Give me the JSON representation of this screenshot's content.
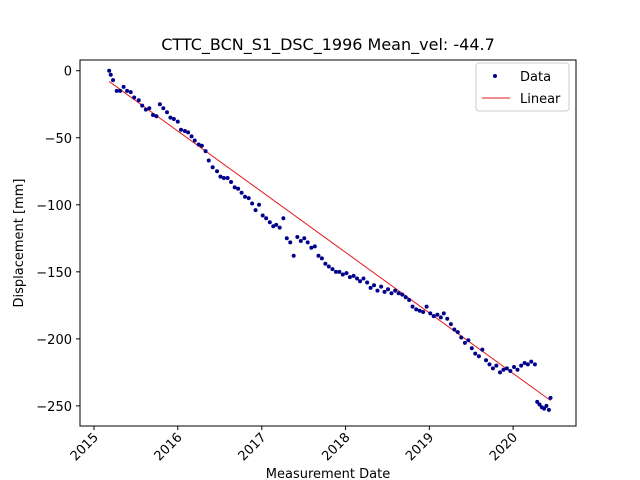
{
  "chart_data": {
    "type": "scatter",
    "title": "CTTC_BCN_S1_DSC_1996     Mean_vel: -44.7",
    "xlabel": "Measurement Date",
    "ylabel": "Displacement [mm]",
    "x_type": "date",
    "xlim": [
      "2014-11-01",
      "2020-10-01"
    ],
    "ylim": [
      -265,
      8
    ],
    "x_ticks": [
      "2015-01-01",
      "2016-01-01",
      "2017-01-01",
      "2018-01-01",
      "2019-01-01",
      "2020-01-01"
    ],
    "x_tick_labels": [
      "2015",
      "2016",
      "2017",
      "2018",
      "2019",
      "2020"
    ],
    "y_ticks": [
      0,
      -50,
      -100,
      -150,
      -200,
      -250
    ],
    "y_tick_labels": [
      "0",
      "−50",
      "−100",
      "−150",
      "−200",
      "−250"
    ],
    "grid": false,
    "legend_position": "top-right",
    "series": [
      {
        "name": "Data",
        "style": "markers",
        "color": "#00008b",
        "x": [
          "2015-03-08",
          "2015-03-15",
          "2015-03-25",
          "2015-04-10",
          "2015-04-25",
          "2015-05-10",
          "2015-05-25",
          "2015-06-10",
          "2015-06-25",
          "2015-07-15",
          "2015-07-30",
          "2015-08-15",
          "2015-08-30",
          "2015-09-15",
          "2015-09-30",
          "2015-10-15",
          "2015-10-30",
          "2015-11-15",
          "2015-11-30",
          "2015-12-15",
          "2016-01-01",
          "2016-01-15",
          "2016-02-01",
          "2016-02-15",
          "2016-03-01",
          "2016-03-15",
          "2016-04-01",
          "2016-04-15",
          "2016-05-01",
          "2016-05-15",
          "2016-06-01",
          "2016-06-20",
          "2016-07-05",
          "2016-07-20",
          "2016-08-05",
          "2016-08-20",
          "2016-09-05",
          "2016-09-20",
          "2016-10-05",
          "2016-10-20",
          "2016-11-05",
          "2016-11-20",
          "2016-12-05",
          "2016-12-20",
          "2017-01-05",
          "2017-01-20",
          "2017-02-05",
          "2017-02-20",
          "2017-03-05",
          "2017-03-20",
          "2017-04-05",
          "2017-04-20",
          "2017-05-05",
          "2017-05-20",
          "2017-06-05",
          "2017-06-20",
          "2017-07-05",
          "2017-07-20",
          "2017-08-05",
          "2017-08-20",
          "2017-09-05",
          "2017-09-20",
          "2017-10-05",
          "2017-10-20",
          "2017-11-05",
          "2017-11-20",
          "2017-12-05",
          "2017-12-20",
          "2018-01-05",
          "2018-01-20",
          "2018-02-05",
          "2018-02-20",
          "2018-03-05",
          "2018-03-20",
          "2018-04-05",
          "2018-04-20",
          "2018-05-05",
          "2018-05-20",
          "2018-06-05",
          "2018-06-20",
          "2018-07-05",
          "2018-07-20",
          "2018-08-05",
          "2018-08-20",
          "2018-09-05",
          "2018-09-20",
          "2018-10-05",
          "2018-10-20",
          "2018-11-05",
          "2018-11-20",
          "2018-12-05",
          "2018-12-20",
          "2019-01-05",
          "2019-01-20",
          "2019-02-05",
          "2019-02-20",
          "2019-03-05",
          "2019-03-20",
          "2019-04-05",
          "2019-04-20",
          "2019-05-05",
          "2019-05-20",
          "2019-06-05",
          "2019-06-20",
          "2019-07-05",
          "2019-07-20",
          "2019-08-05",
          "2019-08-20",
          "2019-09-05",
          "2019-09-20",
          "2019-10-05",
          "2019-10-20",
          "2019-11-05",
          "2019-11-20",
          "2019-12-05",
          "2019-12-20",
          "2020-01-05",
          "2020-01-20",
          "2020-02-05",
          "2020-02-20",
          "2020-03-05",
          "2020-03-20",
          "2020-04-05",
          "2020-04-15",
          "2020-04-25",
          "2020-05-05",
          "2020-05-15",
          "2020-05-25",
          "2020-06-05",
          "2020-06-12"
        ],
        "y": [
          0,
          -3,
          -7,
          -15,
          -15,
          -12,
          -15,
          -16,
          -20,
          -22,
          -26,
          -29,
          -28,
          -33,
          -34,
          -25,
          -28,
          -31,
          -35,
          -36,
          -38,
          -44,
          -45,
          -46,
          -49,
          -52,
          -55,
          -56,
          -60,
          -67,
          -72,
          -75,
          -79,
          -80,
          -80,
          -83,
          -87,
          -88,
          -91,
          -94,
          -95,
          -99,
          -104,
          -100,
          -108,
          -110,
          -113,
          -116,
          -115,
          -117,
          -110,
          -125,
          -128,
          -138,
          -124,
          -127,
          -125,
          -128,
          -132,
          -131,
          -138,
          -140,
          -144,
          -146,
          -148,
          -150,
          -150,
          -152,
          -151,
          -154,
          -153,
          -155,
          -157,
          -155,
          -158,
          -162,
          -160,
          -164,
          -161,
          -165,
          -163,
          -166,
          -164,
          -166,
          -167,
          -169,
          -171,
          -176,
          -178,
          -179,
          -180,
          -176,
          -181,
          -183,
          -182,
          -184,
          -181,
          -185,
          -189,
          -193,
          -195,
          -199,
          -203,
          -201,
          -207,
          -211,
          -213,
          -208,
          -216,
          -219,
          -222,
          -220,
          -225,
          -223,
          -222,
          -224,
          -221,
          -223,
          -220,
          -218,
          -219,
          -217,
          -219,
          -247,
          -249,
          -251,
          -252,
          -250,
          -253,
          -244
        ]
      },
      {
        "name": "Linear",
        "style": "line",
        "color": "#e41a1c",
        "x": [
          "2015-03-08",
          "2020-06-12"
        ],
        "y": [
          -8,
          -246
        ]
      }
    ]
  }
}
